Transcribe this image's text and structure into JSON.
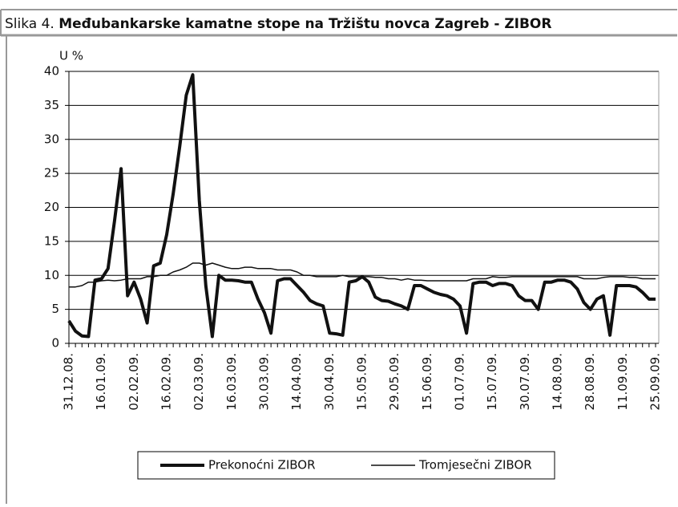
{
  "chart_data": {
    "type": "line",
    "title_prefix": "Slika 4.",
    "title": "Međubankarske kamatne stope na Tržištu novca Zagreb - ZIBOR",
    "ylabel": "U %",
    "categories": [
      "31.12.08.",
      null,
      null,
      null,
      null,
      "16.01.09.",
      null,
      null,
      null,
      null,
      "02.02.09.",
      null,
      null,
      null,
      null,
      "16.02.09.",
      null,
      null,
      null,
      null,
      "02.03.09.",
      null,
      null,
      null,
      null,
      "16.03.09.",
      null,
      null,
      null,
      null,
      "30.03.09.",
      null,
      null,
      null,
      null,
      "14.04.09.",
      null,
      null,
      null,
      null,
      "30.04.09.",
      null,
      null,
      null,
      null,
      "15.05.09.",
      null,
      null,
      null,
      null,
      "29.05.09.",
      null,
      null,
      null,
      null,
      "15.06.09.",
      null,
      null,
      null,
      null,
      "01.07.09.",
      null,
      null,
      null,
      null,
      "15.07.09.",
      null,
      null,
      null,
      null,
      "30.07.09.",
      null,
      null,
      null,
      null,
      "14.08.09.",
      null,
      null,
      null,
      null,
      "28.08.09.",
      null,
      null,
      null,
      null,
      "11.09.09.",
      null,
      null,
      null,
      null,
      "25.09.09."
    ],
    "series": [
      {
        "name": "Prekonoćni ZIBOR",
        "color": "#111111",
        "width": 4,
        "values": [
          3.3,
          1.8,
          1.1,
          1.0,
          9.3,
          9.5,
          11,
          18,
          25.7,
          7,
          9,
          6.5,
          3,
          11.4,
          11.8,
          16,
          22,
          29,
          36.5,
          39.5,
          21,
          8.5,
          1,
          10,
          9.3,
          9.3,
          9.2,
          9,
          9,
          6.5,
          4.5,
          1.5,
          9.2,
          9.5,
          9.5,
          8.5,
          7.5,
          6.3,
          5.8,
          5.5,
          1.5,
          1.4,
          1.2,
          9,
          9.2,
          9.8,
          9,
          6.8,
          6.3,
          6.2,
          5.8,
          5.5,
          5.0,
          8.5,
          8.5,
          8,
          7.5,
          7.2,
          7,
          6.5,
          5.5,
          1.5,
          8.8,
          9,
          9,
          8.5,
          8.8,
          8.8,
          8.5,
          7,
          6.3,
          6.3,
          5,
          9,
          9,
          9.3,
          9.3,
          9,
          8,
          6,
          5,
          6.5,
          7,
          1.2,
          8.5,
          8.5,
          8.5,
          8.3,
          7.5,
          6.5,
          6.5
        ]
      },
      {
        "name": "Tromjesečni ZIBOR",
        "color": "#111111",
        "width": 1.5,
        "values": [
          8.3,
          8.3,
          8.5,
          9,
          9,
          9.2,
          9.3,
          9.2,
          9.3,
          9.5,
          9.5,
          9.5,
          9.8,
          9.8,
          10,
          10,
          10.5,
          10.8,
          11.2,
          11.8,
          11.8,
          11.5,
          11.8,
          11.5,
          11.2,
          11,
          11,
          11.2,
          11.2,
          11,
          11,
          11,
          10.8,
          10.8,
          10.8,
          10.5,
          10,
          10,
          9.8,
          9.8,
          9.8,
          9.8,
          10,
          9.8,
          9.8,
          9.8,
          9.8,
          9.7,
          9.7,
          9.5,
          9.5,
          9.3,
          9.5,
          9.3,
          9.3,
          9.2,
          9.2,
          9.2,
          9.2,
          9.2,
          9.2,
          9.2,
          9.5,
          9.5,
          9.5,
          9.8,
          9.7,
          9.7,
          9.8,
          9.8,
          9.8,
          9.8,
          9.8,
          9.8,
          9.8,
          9.8,
          9.8,
          9.8,
          9.8,
          9.5,
          9.5,
          9.5,
          9.7,
          9.8,
          9.8,
          9.8,
          9.7,
          9.7,
          9.5,
          9.5,
          9.5
        ]
      }
    ],
    "ylim": [
      0,
      40
    ],
    "yticks": [
      0,
      5,
      10,
      15,
      20,
      25,
      30,
      35,
      40
    ],
    "grid": true,
    "legend": "bottom"
  }
}
